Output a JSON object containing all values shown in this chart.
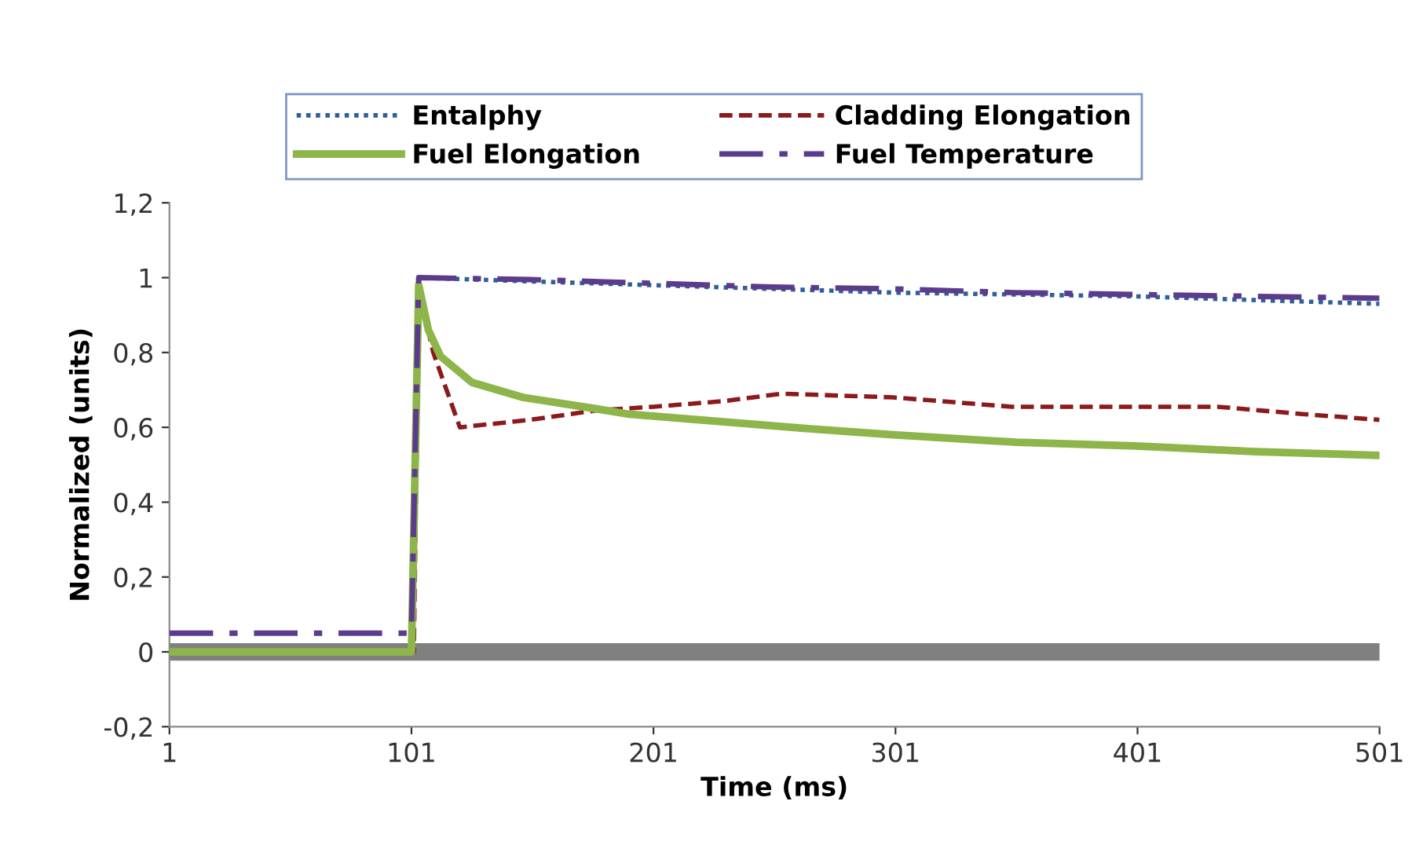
{
  "chart_data": {
    "type": "line",
    "xlabel": "Time (ms)",
    "ylabel": "Normalized (units)",
    "xlim": [
      1,
      501
    ],
    "xticks": [
      1,
      101,
      201,
      301,
      401,
      501
    ],
    "ylim": [
      -0.2,
      1.2
    ],
    "yticks": [
      {
        "value": -0.2,
        "label": "-0,2"
      },
      0,
      {
        "value": 0.2,
        "label": "0,2"
      },
      {
        "value": 0.4,
        "label": "0,4"
      },
      {
        "value": 0.6,
        "label": "0,6"
      },
      {
        "value": 0.8,
        "label": "0,8"
      },
      1,
      {
        "value": 1.2,
        "label": "1,2"
      }
    ],
    "grid": false,
    "legend": "top",
    "marker": "none",
    "ref_lines": [
      {
        "axis": "y",
        "value": 0,
        "color": "#808080"
      }
    ],
    "series": [
      {
        "name": "Entalphy",
        "color": "#2e5f9e",
        "line_style": "dotted",
        "x": [
          1,
          101,
          104,
          150,
          200,
          250,
          300,
          350,
          400,
          450,
          501
        ],
        "values": [
          0,
          0,
          1.0,
          0.99,
          0.98,
          0.97,
          0.96,
          0.955,
          0.95,
          0.94,
          0.93
        ]
      },
      {
        "name": "Cladding Elongation",
        "color": "#8b1a1a",
        "line_style": "dashed",
        "x": [
          1,
          102,
          104,
          110,
          121,
          150,
          177,
          201,
          230,
          254,
          300,
          349,
          434,
          470,
          501
        ],
        "values": [
          0,
          0,
          0.97,
          0.8,
          0.6,
          0.62,
          0.645,
          0.655,
          0.67,
          0.69,
          0.68,
          0.655,
          0.655,
          0.635,
          0.62
        ]
      },
      {
        "name": "Fuel Elongation",
        "color": "#8db54a",
        "line_style": "solid",
        "x": [
          1,
          101,
          104,
          108,
          113,
          126,
          147,
          177,
          191,
          220,
          258,
          300,
          351,
          400,
          450,
          501
        ],
        "values": [
          0,
          0,
          0.98,
          0.86,
          0.79,
          0.72,
          0.68,
          0.65,
          0.635,
          0.62,
          0.6,
          0.58,
          0.56,
          0.55,
          0.535,
          0.525
        ]
      },
      {
        "name": "Fuel Temperature",
        "color": "#5b3b8c",
        "line_style": "dashdot",
        "x": [
          1,
          101,
          104,
          150,
          200,
          250,
          300,
          350,
          400,
          450,
          501
        ],
        "values": [
          0.05,
          0.05,
          1.0,
          0.995,
          0.985,
          0.975,
          0.97,
          0.96,
          0.955,
          0.95,
          0.945
        ]
      }
    ]
  }
}
